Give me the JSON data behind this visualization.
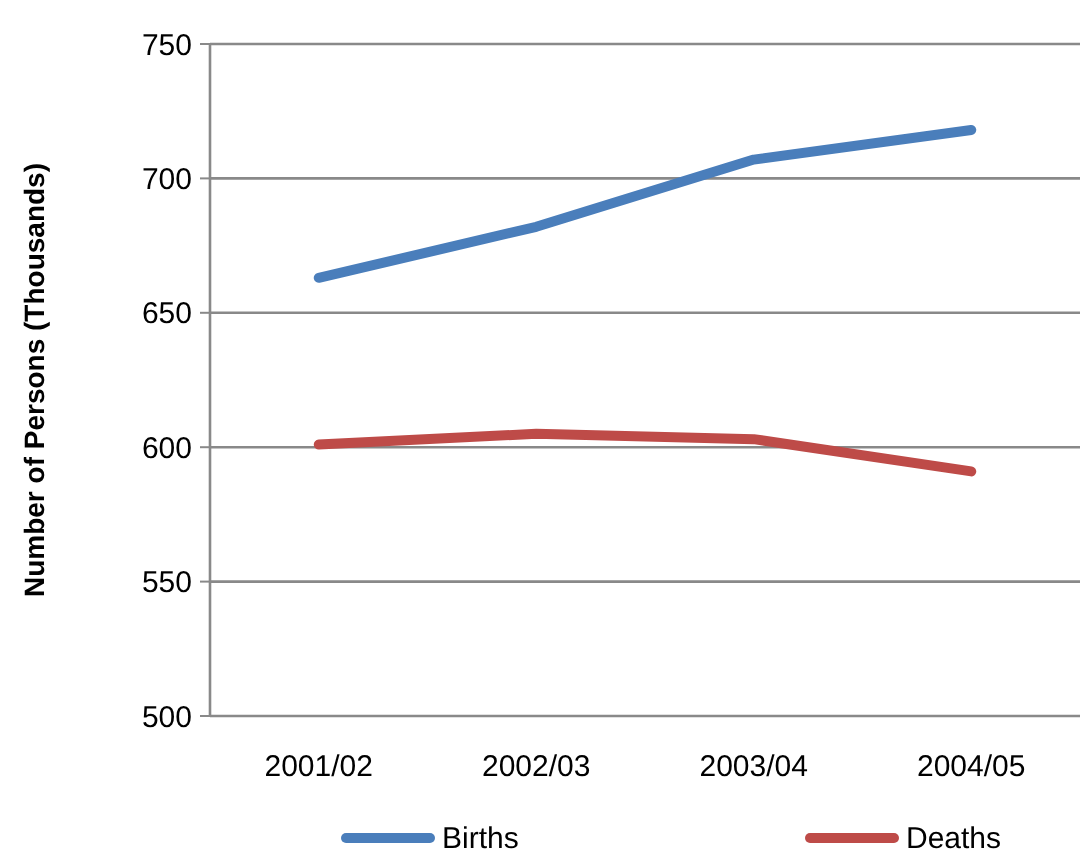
{
  "chart_data": {
    "type": "line",
    "ylabel": "Number of Persons (Thousands)",
    "categories": [
      "2001/02",
      "2002/03",
      "2003/04",
      "2004/05"
    ],
    "series": [
      {
        "name": "Births",
        "color": "#4a7ebb",
        "values": [
          663,
          682,
          707,
          718
        ]
      },
      {
        "name": "Deaths",
        "color": "#be4b48",
        "values": [
          601,
          605,
          603,
          591
        ]
      }
    ],
    "ylim": [
      500,
      750
    ],
    "yticks": [
      500,
      550,
      600,
      650,
      700,
      750
    ],
    "grid": "y",
    "legend": "bottom",
    "marker": "none",
    "line_style": "solid"
  }
}
